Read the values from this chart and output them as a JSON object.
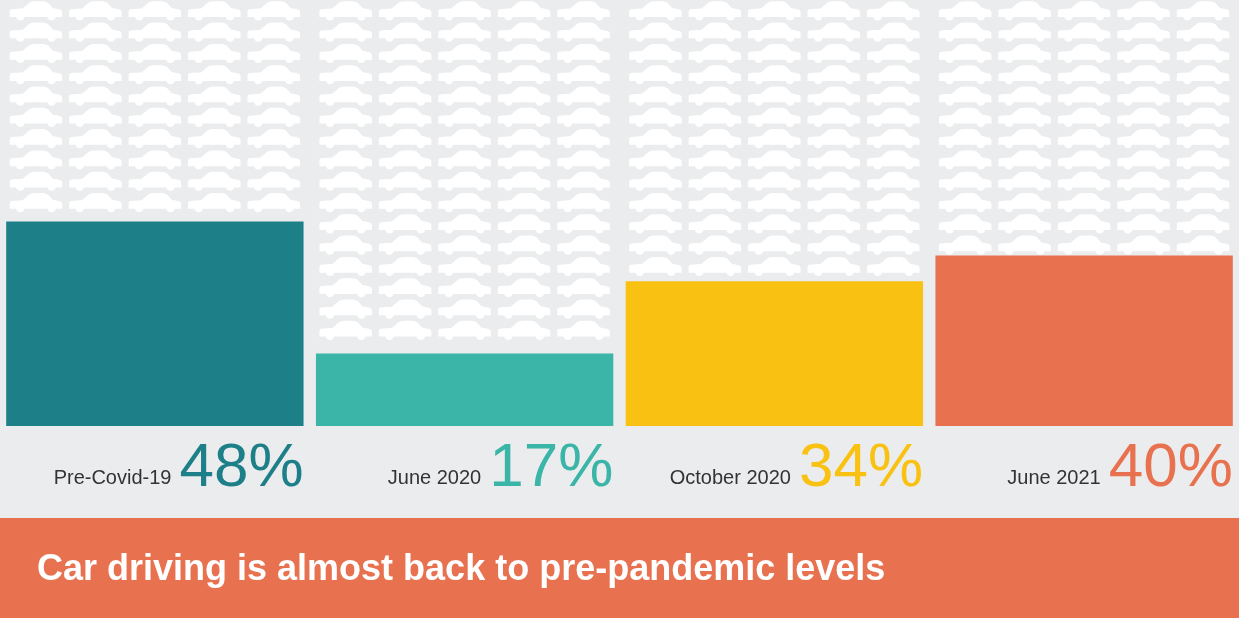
{
  "chart_data": {
    "type": "bar",
    "title": "Car driving is almost back to pre-pandemic levels",
    "categories": [
      "Pre-Covid-19",
      "June 2020",
      "October 2020",
      "June 2021"
    ],
    "values": [
      48,
      17,
      34,
      40
    ],
    "colors": [
      "#1d7f88",
      "#3bb5a7",
      "#f9c213",
      "#e8714f"
    ],
    "value_labels": [
      "48%",
      "17%",
      "34%",
      "40%"
    ],
    "ylim": [
      0,
      100
    ],
    "tick_labels": "x"
  }
}
